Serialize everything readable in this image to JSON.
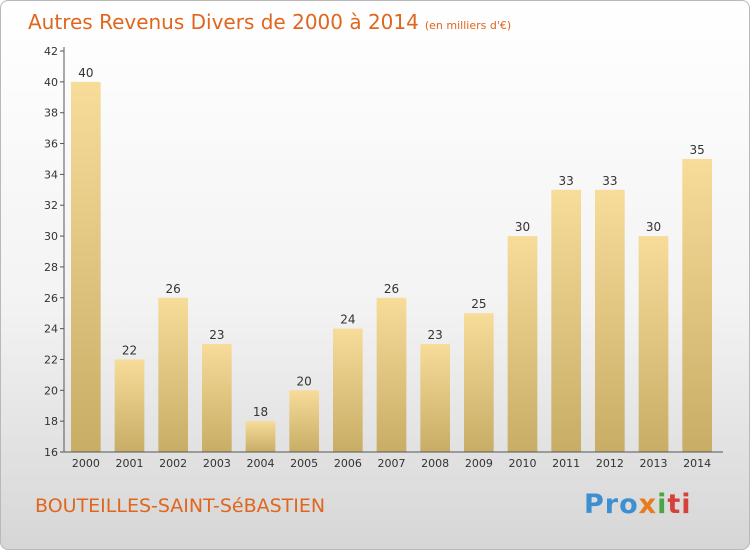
{
  "title": "Autres Revenus Divers de 2000 à 2014",
  "subtitle": "(en milliers d'€)",
  "commune": "BOUTEILLES-SAINT-SéBASTIEN",
  "logo": {
    "parts": [
      "Pro",
      "x",
      "i",
      "ti"
    ]
  },
  "colors": {
    "bar_top": "#f7dc9a",
    "bar_bottom": "#c8ad66",
    "title": "#e0661d"
  },
  "chart_data": {
    "type": "bar",
    "categories": [
      "2000",
      "2001",
      "2002",
      "2003",
      "2004",
      "2005",
      "2006",
      "2007",
      "2008",
      "2009",
      "2010",
      "2011",
      "2012",
      "2013",
      "2014"
    ],
    "values": [
      40,
      22,
      26,
      23,
      18,
      20,
      24,
      26,
      23,
      25,
      30,
      33,
      33,
      30,
      35
    ],
    "data_labels": [
      "40",
      "22",
      "26",
      "23",
      "18",
      "20",
      "24",
      "26",
      "23",
      "25",
      "30",
      "33",
      "33",
      "30",
      "35"
    ],
    "yticks": [
      16,
      18,
      20,
      22,
      24,
      26,
      28,
      30,
      32,
      34,
      36,
      38,
      40,
      42
    ],
    "ylim": [
      16,
      42
    ],
    "grid": false,
    "legend": "none"
  }
}
